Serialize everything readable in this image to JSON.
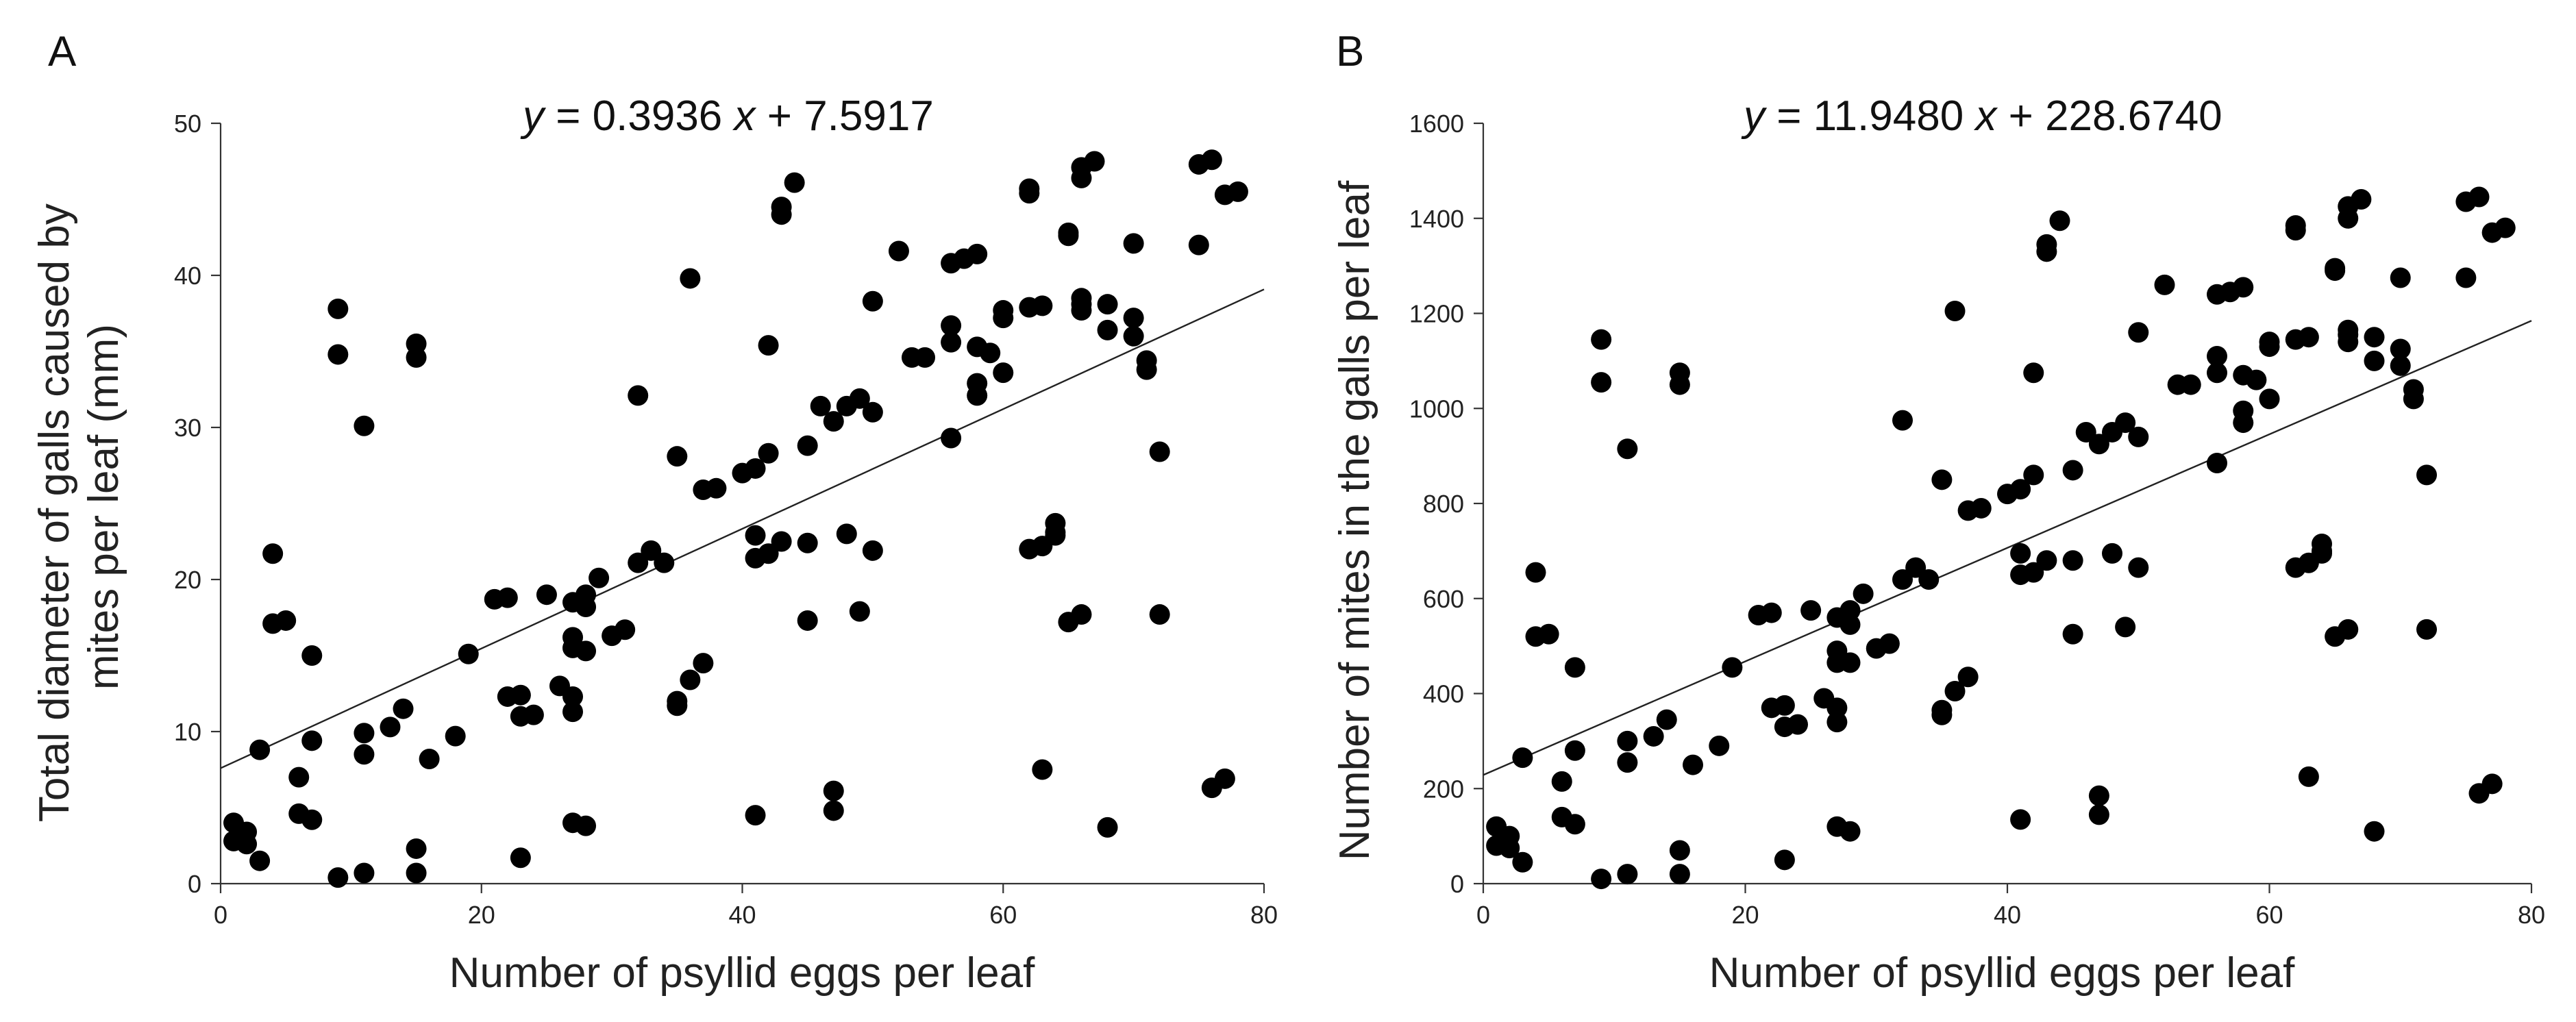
{
  "chart_data": [
    {
      "type": "scatter",
      "panel_label": "A",
      "equation": {
        "y_var": "y",
        "eq_text": " = 0.3936 ",
        "x_var": "x",
        "rest_text": " + 7.5917"
      },
      "xlabel": "Number of psyllid eggs per leaf",
      "ylabel_lines": [
        "Total diameter of galls caused by",
        "mites per leaf (mm)"
      ],
      "xlim": [
        0,
        80
      ],
      "ylim": [
        0,
        50
      ],
      "xticks": [
        0,
        20,
        40,
        60,
        80
      ],
      "yticks": [
        0,
        10,
        20,
        30,
        40,
        50
      ],
      "regression": {
        "slope": 0.3936,
        "intercept": 7.5917
      },
      "points": [
        [
          1,
          4.0
        ],
        [
          1,
          2.8
        ],
        [
          2,
          3.4
        ],
        [
          2,
          2.6
        ],
        [
          3,
          1.5
        ],
        [
          3,
          8.8
        ],
        [
          4,
          21.7
        ],
        [
          4,
          17.1
        ],
        [
          5,
          17.3
        ],
        [
          6,
          7.0
        ],
        [
          6,
          4.6
        ],
        [
          7,
          4.2
        ],
        [
          7,
          9.4
        ],
        [
          7,
          15.0
        ],
        [
          9,
          0.4
        ],
        [
          9,
          37.8
        ],
        [
          9,
          34.8
        ],
        [
          11,
          30.1
        ],
        [
          11,
          9.9
        ],
        [
          11,
          8.5
        ],
        [
          11,
          0.7
        ],
        [
          13,
          10.3
        ],
        [
          14,
          11.5
        ],
        [
          15,
          35.5
        ],
        [
          15,
          34.6
        ],
        [
          15,
          2.3
        ],
        [
          15,
          0.7
        ],
        [
          16,
          8.2
        ],
        [
          18,
          9.7
        ],
        [
          19,
          15.1
        ],
        [
          21,
          18.7
        ],
        [
          22,
          18.8
        ],
        [
          22,
          12.3
        ],
        [
          23,
          12.4
        ],
        [
          23,
          11.0
        ],
        [
          23,
          1.7
        ],
        [
          24,
          11.1
        ],
        [
          25,
          19.0
        ],
        [
          26,
          13.0
        ],
        [
          27,
          18.5
        ],
        [
          27,
          16.2
        ],
        [
          27,
          15.5
        ],
        [
          27,
          12.3
        ],
        [
          27,
          11.3
        ],
        [
          27,
          4.0
        ],
        [
          28,
          19.0
        ],
        [
          28,
          18.2
        ],
        [
          28,
          15.3
        ],
        [
          28,
          3.8
        ],
        [
          29,
          20.1
        ],
        [
          30,
          16.3
        ],
        [
          31,
          16.7
        ],
        [
          32,
          32.1
        ],
        [
          32,
          21.1
        ],
        [
          33,
          21.9
        ],
        [
          34,
          21.1
        ],
        [
          35,
          28.1
        ],
        [
          35,
          12.0
        ],
        [
          35,
          11.7
        ],
        [
          36,
          39.8
        ],
        [
          36,
          13.4
        ],
        [
          37,
          25.9
        ],
        [
          37,
          14.5
        ],
        [
          38,
          26.0
        ],
        [
          40,
          27.0
        ],
        [
          41,
          27.3
        ],
        [
          41,
          22.9
        ],
        [
          41,
          21.4
        ],
        [
          41,
          4.5
        ],
        [
          42,
          35.4
        ],
        [
          42,
          28.3
        ],
        [
          42,
          21.7
        ],
        [
          43,
          44.5
        ],
        [
          43,
          44.0
        ],
        [
          43,
          22.5
        ],
        [
          44,
          46.1
        ],
        [
          45,
          28.8
        ],
        [
          45,
          22.4
        ],
        [
          45,
          17.3
        ],
        [
          46,
          31.4
        ],
        [
          47,
          30.4
        ],
        [
          47,
          6.1
        ],
        [
          47,
          4.8
        ],
        [
          48,
          31.4
        ],
        [
          48,
          23.0
        ],
        [
          49,
          31.9
        ],
        [
          49,
          17.9
        ],
        [
          50,
          38.3
        ],
        [
          50,
          31.0
        ],
        [
          50,
          21.9
        ],
        [
          52,
          41.6
        ],
        [
          53,
          34.6
        ],
        [
          54,
          34.6
        ],
        [
          56,
          40.8
        ],
        [
          56,
          36.7
        ],
        [
          56,
          35.6
        ],
        [
          56,
          29.3
        ],
        [
          57,
          41.1
        ],
        [
          58,
          41.4
        ],
        [
          58,
          35.3
        ],
        [
          58,
          32.9
        ],
        [
          58,
          32.1
        ],
        [
          59,
          34.9
        ],
        [
          60,
          37.7
        ],
        [
          60,
          37.2
        ],
        [
          60,
          33.6
        ],
        [
          62,
          45.7
        ],
        [
          62,
          45.4
        ],
        [
          62,
          37.9
        ],
        [
          62,
          22.0
        ],
        [
          63,
          38.0
        ],
        [
          63,
          22.2
        ],
        [
          63,
          7.5
        ],
        [
          64,
          23.7
        ],
        [
          64,
          23.1
        ],
        [
          64,
          22.9
        ],
        [
          65,
          42.8
        ],
        [
          65,
          42.6
        ],
        [
          65,
          17.2
        ],
        [
          66,
          47.1
        ],
        [
          66,
          46.4
        ],
        [
          66,
          38.5
        ],
        [
          66,
          38.1
        ],
        [
          66,
          37.7
        ],
        [
          66,
          17.7
        ],
        [
          67,
          47.5
        ],
        [
          68,
          38.1
        ],
        [
          68,
          36.4
        ],
        [
          68,
          3.7
        ],
        [
          70,
          42.1
        ],
        [
          70,
          37.2
        ],
        [
          70,
          36.0
        ],
        [
          71,
          34.4
        ],
        [
          71,
          33.8
        ],
        [
          72,
          28.4
        ],
        [
          72,
          17.7
        ],
        [
          75,
          47.3
        ],
        [
          75,
          42.0
        ],
        [
          76,
          47.6
        ],
        [
          76,
          6.3
        ],
        [
          77,
          45.3
        ],
        [
          77,
          6.9
        ],
        [
          78,
          45.5
        ]
      ]
    },
    {
      "type": "scatter",
      "panel_label": "B",
      "equation": {
        "y_var": "y",
        "eq_text": " = 11.9480 ",
        "x_var": "x",
        "rest_text": " + 228.6740"
      },
      "xlabel": "Number of psyllid eggs per leaf",
      "ylabel_lines": [
        "Number of mites in the galls per leaf"
      ],
      "xlim": [
        0,
        80
      ],
      "ylim": [
        0,
        1600
      ],
      "xticks": [
        0,
        20,
        40,
        60,
        80
      ],
      "yticks": [
        0,
        200,
        400,
        600,
        800,
        1000,
        1200,
        1400,
        1600
      ],
      "regression": {
        "slope": 11.948,
        "intercept": 228.674
      },
      "points": [
        [
          1,
          120
        ],
        [
          1,
          80
        ],
        [
          2,
          100
        ],
        [
          2,
          75
        ],
        [
          3,
          45
        ],
        [
          3,
          265
        ],
        [
          4,
          655
        ],
        [
          4,
          520
        ],
        [
          5,
          525
        ],
        [
          6,
          215
        ],
        [
          6,
          140
        ],
        [
          7,
          125
        ],
        [
          7,
          280
        ],
        [
          7,
          455
        ],
        [
          9,
          10
        ],
        [
          9,
          1145
        ],
        [
          9,
          1055
        ],
        [
          11,
          915
        ],
        [
          11,
          300
        ],
        [
          11,
          255
        ],
        [
          11,
          20
        ],
        [
          13,
          310
        ],
        [
          14,
          345
        ],
        [
          15,
          1075
        ],
        [
          15,
          1050
        ],
        [
          15,
          70
        ],
        [
          15,
          20
        ],
        [
          16,
          250
        ],
        [
          18,
          290
        ],
        [
          19,
          455
        ],
        [
          21,
          565
        ],
        [
          22,
          570
        ],
        [
          22,
          370
        ],
        [
          23,
          375
        ],
        [
          23,
          330
        ],
        [
          23,
          50
        ],
        [
          24,
          335
        ],
        [
          25,
          575
        ],
        [
          26,
          390
        ],
        [
          27,
          560
        ],
        [
          27,
          490
        ],
        [
          27,
          465
        ],
        [
          27,
          370
        ],
        [
          27,
          340
        ],
        [
          27,
          120
        ],
        [
          28,
          575
        ],
        [
          28,
          545
        ],
        [
          28,
          465
        ],
        [
          28,
          110
        ],
        [
          29,
          610
        ],
        [
          30,
          495
        ],
        [
          31,
          505
        ],
        [
          32,
          975
        ],
        [
          32,
          640
        ],
        [
          33,
          665
        ],
        [
          34,
          640
        ],
        [
          35,
          850
        ],
        [
          35,
          365
        ],
        [
          35,
          355
        ],
        [
          36,
          1205
        ],
        [
          36,
          405
        ],
        [
          37,
          785
        ],
        [
          37,
          435
        ],
        [
          38,
          790
        ],
        [
          40,
          820
        ],
        [
          41,
          830
        ],
        [
          41,
          695
        ],
        [
          41,
          650
        ],
        [
          41,
          135
        ],
        [
          42,
          1075
        ],
        [
          42,
          860
        ],
        [
          42,
          655
        ],
        [
          43,
          1345
        ],
        [
          43,
          1330
        ],
        [
          43,
          680
        ],
        [
          44,
          1395
        ],
        [
          45,
          870
        ],
        [
          45,
          680
        ],
        [
          45,
          525
        ],
        [
          46,
          950
        ],
        [
          47,
          925
        ],
        [
          47,
          185
        ],
        [
          47,
          145
        ],
        [
          48,
          950
        ],
        [
          48,
          695
        ],
        [
          49,
          970
        ],
        [
          49,
          540
        ],
        [
          50,
          1160
        ],
        [
          50,
          940
        ],
        [
          50,
          665
        ],
        [
          52,
          1260
        ],
        [
          53,
          1050
        ],
        [
          54,
          1050
        ],
        [
          56,
          1240
        ],
        [
          56,
          1110
        ],
        [
          56,
          1075
        ],
        [
          56,
          885
        ],
        [
          57,
          1245
        ],
        [
          58,
          1255
        ],
        [
          58,
          1070
        ],
        [
          58,
          995
        ],
        [
          58,
          970
        ],
        [
          59,
          1060
        ],
        [
          60,
          1140
        ],
        [
          60,
          1130
        ],
        [
          60,
          1020
        ],
        [
          62,
          1385
        ],
        [
          62,
          1375
        ],
        [
          62,
          1145
        ],
        [
          62,
          665
        ],
        [
          63,
          1150
        ],
        [
          63,
          675
        ],
        [
          63,
          225
        ],
        [
          64,
          715
        ],
        [
          64,
          700
        ],
        [
          64,
          695
        ],
        [
          65,
          1295
        ],
        [
          65,
          1290
        ],
        [
          65,
          520
        ],
        [
          66,
          1425
        ],
        [
          66,
          1400
        ],
        [
          66,
          1165
        ],
        [
          66,
          1155
        ],
        [
          66,
          1140
        ],
        [
          66,
          535
        ],
        [
          67,
          1440
        ],
        [
          68,
          1150
        ],
        [
          68,
          1100
        ],
        [
          68,
          110
        ],
        [
          70,
          1275
        ],
        [
          70,
          1125
        ],
        [
          70,
          1090
        ],
        [
          71,
          1040
        ],
        [
          71,
          1020
        ],
        [
          72,
          860
        ],
        [
          72,
          535
        ],
        [
          75,
          1435
        ],
        [
          75,
          1275
        ],
        [
          76,
          1445
        ],
        [
          76,
          190
        ],
        [
          77,
          1370
        ],
        [
          77,
          210
        ],
        [
          78,
          1380
        ]
      ]
    }
  ]
}
